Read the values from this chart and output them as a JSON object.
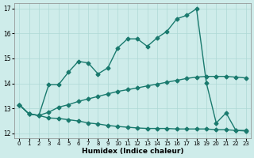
{
  "xlabel": "Humidex (Indice chaleur)",
  "bg_color": "#ceecea",
  "line_color": "#1a7a6e",
  "grid_color": "#add8d5",
  "xlim": [
    -0.5,
    23.5
  ],
  "ylim": [
    11.8,
    17.2
  ],
  "yticks": [
    12,
    13,
    14,
    15,
    16,
    17
  ],
  "xticks": [
    0,
    1,
    2,
    3,
    4,
    5,
    6,
    7,
    8,
    9,
    10,
    11,
    12,
    13,
    14,
    15,
    16,
    17,
    18,
    19,
    20,
    21,
    22,
    23
  ],
  "series1_x": [
    0,
    1,
    2,
    3,
    4,
    5,
    6,
    7,
    8,
    9,
    10,
    11,
    12,
    13,
    14,
    15,
    16,
    17,
    18,
    19,
    20,
    21,
    22,
    23
  ],
  "series1_y": [
    13.15,
    12.78,
    12.72,
    12.62,
    12.6,
    12.55,
    12.5,
    12.42,
    12.38,
    12.32,
    12.28,
    12.25,
    12.22,
    12.2,
    12.2,
    12.2,
    12.18,
    12.18,
    12.18,
    12.18,
    12.15,
    12.15,
    12.12,
    12.1
  ],
  "series2_x": [
    0,
    1,
    2,
    3,
    4,
    5,
    6,
    7,
    8,
    9,
    10,
    11,
    12,
    13,
    14,
    15,
    16,
    17,
    18,
    19,
    20,
    21,
    22,
    23
  ],
  "series2_y": [
    13.15,
    12.78,
    12.72,
    12.85,
    13.05,
    13.15,
    13.28,
    13.38,
    13.48,
    13.58,
    13.68,
    13.75,
    13.82,
    13.9,
    13.97,
    14.05,
    14.12,
    14.2,
    14.25,
    14.28,
    14.28,
    14.28,
    14.25,
    14.22
  ],
  "series3_x": [
    0,
    1,
    2,
    3,
    4,
    5,
    6,
    7,
    8,
    9,
    10,
    11,
    12,
    13,
    14,
    15,
    16,
    17,
    18,
    19,
    20,
    21,
    22,
    23
  ],
  "series3_y": [
    13.15,
    12.78,
    12.72,
    13.95,
    13.95,
    14.45,
    14.88,
    14.82,
    14.38,
    14.62,
    15.42,
    15.78,
    15.78,
    15.48,
    15.82,
    16.08,
    16.58,
    16.72,
    16.98,
    14.02,
    12.42,
    12.82,
    12.12,
    12.12
  ],
  "marker": "D",
  "marker_size": 2.5,
  "linewidth": 1.0
}
